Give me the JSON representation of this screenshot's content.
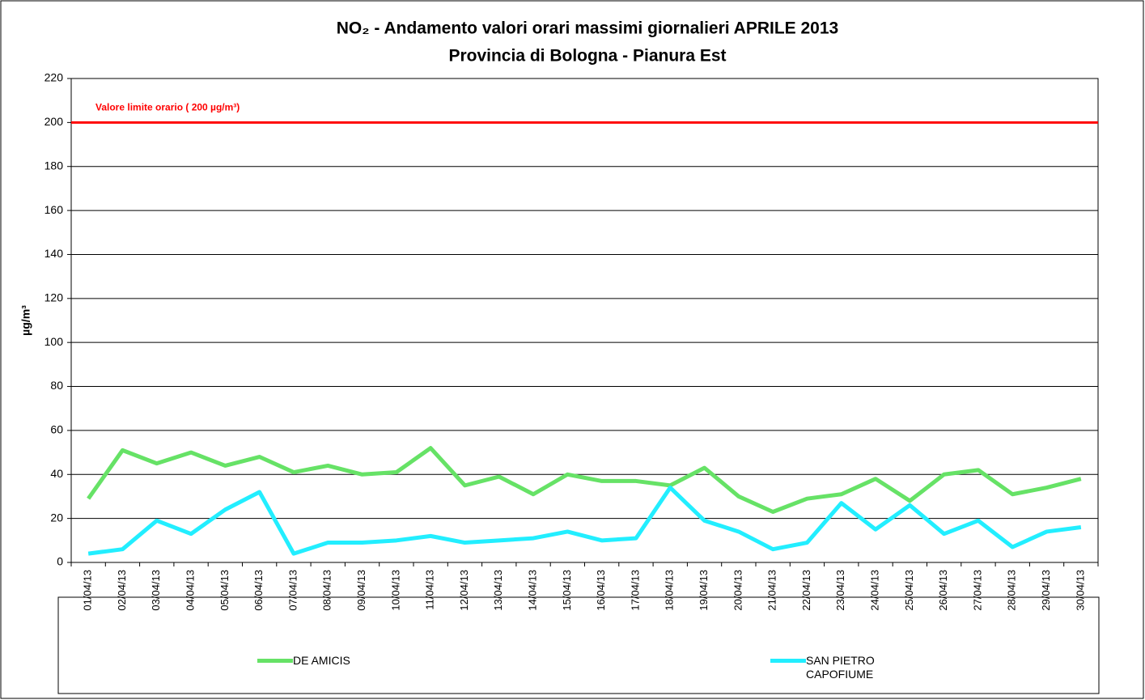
{
  "chart_data": {
    "type": "line",
    "title": "NO₂ - Andamento valori orari massimi giornalieri APRILE 2013",
    "subtitle": "Provincia di Bologna - Pianura Est",
    "ylabel": "µg/m³",
    "categories": [
      "01/04/13",
      "02/04/13",
      "03/04/13",
      "04/04/13",
      "05/04/13",
      "06/04/13",
      "07/04/13",
      "08/04/13",
      "09/04/13",
      "10/04/13",
      "11/04/13",
      "12/04/13",
      "13/04/13",
      "14/04/13",
      "15/04/13",
      "16/04/13",
      "17/04/13",
      "18/04/13",
      "19/04/13",
      "20/04/13",
      "21/04/13",
      "22/04/13",
      "23/04/13",
      "24/04/13",
      "25/04/13",
      "26/04/13",
      "27/04/13",
      "28/04/13",
      "29/04/13",
      "30/04/13"
    ],
    "series": [
      {
        "name": "DE AMICIS",
        "color": "#66e266",
        "values": [
          29,
          51,
          45,
          50,
          44,
          48,
          41,
          44,
          40,
          41,
          52,
          35,
          39,
          31,
          40,
          37,
          37,
          35,
          43,
          30,
          23,
          29,
          31,
          38,
          28,
          40,
          42,
          31,
          34,
          38
        ]
      },
      {
        "name": "SAN PIETRO CAPOFIUME",
        "color": "#22eeff",
        "values": [
          4,
          6,
          19,
          13,
          24,
          32,
          4,
          9,
          9,
          10,
          12,
          9,
          10,
          11,
          14,
          10,
          11,
          34,
          19,
          14,
          6,
          9,
          27,
          15,
          26,
          13,
          19,
          7,
          14,
          16
        ]
      }
    ],
    "limit": {
      "value": 200,
      "label": "Valore limite orario ( 200 µg/m³)",
      "color": "#ff0000"
    },
    "ylim": [
      0,
      220
    ],
    "yticks": [
      0,
      20,
      40,
      60,
      80,
      100,
      120,
      140,
      160,
      180,
      200,
      220
    ],
    "grid": true
  }
}
